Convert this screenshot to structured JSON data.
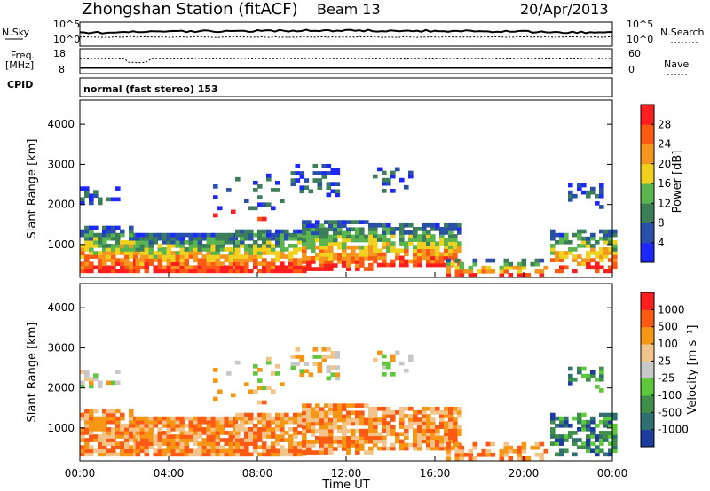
{
  "header": {
    "title": "Zhongshan Station (fitACF)",
    "beam": "Beam 13",
    "date": "20/Apr/2013"
  },
  "colors": {
    "background": "#ffffff",
    "axis": "#000000",
    "power_scale": [
      "#1d28ff",
      "#2850a8",
      "#3c7e5a",
      "#5ab450",
      "#f0d21e",
      "#f5961e",
      "#ff5a14",
      "#ff1e1e"
    ],
    "velocity_scale": [
      "#1e3ca0",
      "#2f6f70",
      "#3f8f4a",
      "#5ec83c",
      "#c8c8c8",
      "#f3c48a",
      "#f59614",
      "#ff5a14",
      "#ff1e1e"
    ]
  },
  "chart_data": [
    {
      "type": "line",
      "name": "noise-panel",
      "left_label": "N.Sky",
      "right_label": "N.Search",
      "left_ticks": [
        "10^5",
        "10^0"
      ],
      "right_ticks": [
        "10^5",
        "10^0"
      ],
      "series": [
        {
          "name": "N.Sky",
          "style": "solid"
        },
        {
          "name": "N.Search",
          "style": "dotted"
        }
      ],
      "x": [
        "00:00",
        "04:00",
        "08:00",
        "12:00",
        "16:00",
        "20:00",
        "00:00"
      ]
    },
    {
      "type": "line",
      "name": "freq-panel",
      "left_label_top": "Freq.",
      "left_label_bottom": "[MHz]",
      "right_label": "Nave",
      "left_ticks": [
        "18",
        "8"
      ],
      "right_ticks": [
        "60",
        "0"
      ],
      "series": [
        {
          "name": "Freq.",
          "style": "solid"
        },
        {
          "name": "Nave",
          "style": "dotted"
        }
      ]
    },
    {
      "type": "table",
      "name": "cpid-panel",
      "label": "CPID",
      "text": "normal (fast stereo) 153"
    },
    {
      "type": "heatmap",
      "name": "power-panel",
      "ylabel": "Slant Range [km]",
      "yticks": [
        1000,
        2000,
        3000,
        4000
      ],
      "ylim": [
        180,
        4600
      ],
      "colorbar_label": "Power [dB]",
      "colorbar_ticks": [
        "28",
        "24",
        "20",
        "16",
        "12",
        "8",
        "4"
      ],
      "colorbar_range": [
        0,
        32
      ]
    },
    {
      "type": "heatmap",
      "name": "velocity-panel",
      "ylabel": "Slant Range [km]",
      "yticks": [
        1000,
        2000,
        3000,
        4000
      ],
      "ylim": [
        180,
        4600
      ],
      "xlabel": "Time UT",
      "xticks": [
        "00:00",
        "04:00",
        "08:00",
        "12:00",
        "16:00",
        "20:00",
        "00:00"
      ],
      "colorbar_label": "Velocity [m s⁻¹]",
      "colorbar_ticks": [
        "1000",
        "500",
        "100",
        "25",
        "-25",
        "-100",
        "-500",
        "-1000"
      ]
    }
  ]
}
